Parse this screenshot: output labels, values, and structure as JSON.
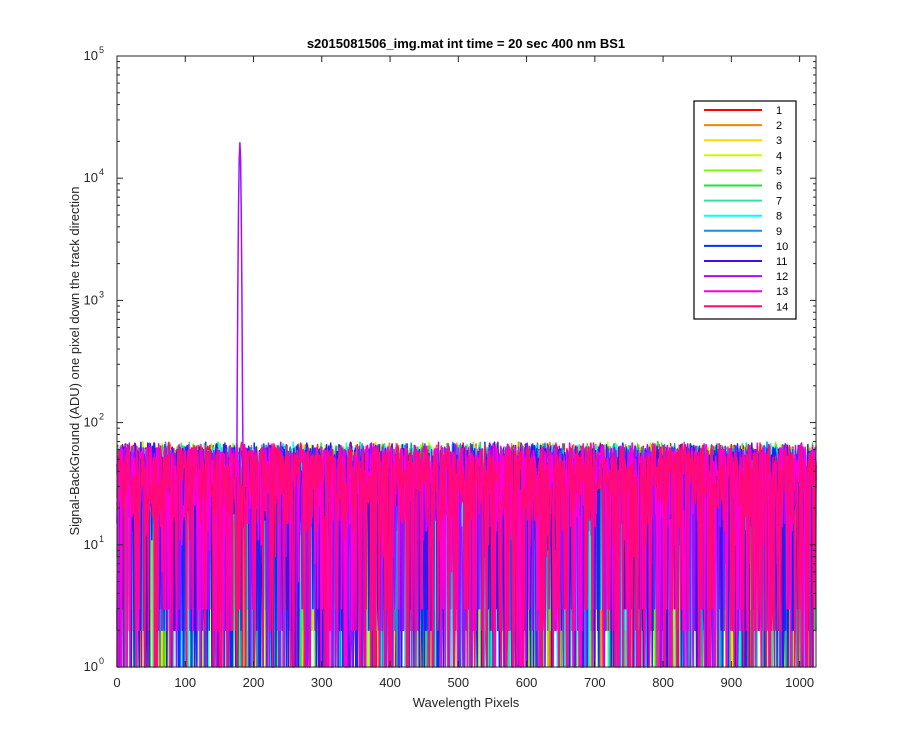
{
  "chart_data": {
    "type": "line",
    "title": "s2015081506_img.mat int time = 20 sec  400 nm BS1",
    "xlabel": "Wavelength Pixels",
    "ylabel": "Signal-BackGround (ADU) one pixel down the track direction",
    "xlim": [
      0,
      1024
    ],
    "ylim": [
      1,
      100000
    ],
    "yscale": "log",
    "xticks": [
      0,
      100,
      200,
      300,
      400,
      500,
      600,
      700,
      800,
      900,
      1000
    ],
    "yticks": [
      {
        "base": "10",
        "exp": "0",
        "value": 1
      },
      {
        "base": "10",
        "exp": "1",
        "value": 10
      },
      {
        "base": "10",
        "exp": "2",
        "value": 100
      },
      {
        "base": "10",
        "exp": "3",
        "value": 1000
      },
      {
        "base": "10",
        "exp": "4",
        "value": 10000
      },
      {
        "base": "10",
        "exp": "5",
        "value": 100000
      }
    ],
    "grid": false,
    "legend_position": "top-right",
    "noise_range": [
      1,
      70
    ],
    "peak": {
      "x": 180,
      "y": 19500,
      "series": "12"
    },
    "series": [
      {
        "name": "1",
        "color": "#ff0000"
      },
      {
        "name": "2",
        "color": "#ff7f00"
      },
      {
        "name": "3",
        "color": "#ffd700"
      },
      {
        "name": "4",
        "color": "#c8ff00"
      },
      {
        "name": "5",
        "color": "#7fff00"
      },
      {
        "name": "6",
        "color": "#22e03c"
      },
      {
        "name": "7",
        "color": "#2ee59d"
      },
      {
        "name": "8",
        "color": "#00ffff"
      },
      {
        "name": "9",
        "color": "#1e8fdb"
      },
      {
        "name": "10",
        "color": "#0033ff"
      },
      {
        "name": "11",
        "color": "#4010e6"
      },
      {
        "name": "12",
        "color": "#a010ff"
      },
      {
        "name": "13",
        "color": "#ff00d4"
      },
      {
        "name": "14",
        "color": "#ff0a78"
      }
    ]
  }
}
